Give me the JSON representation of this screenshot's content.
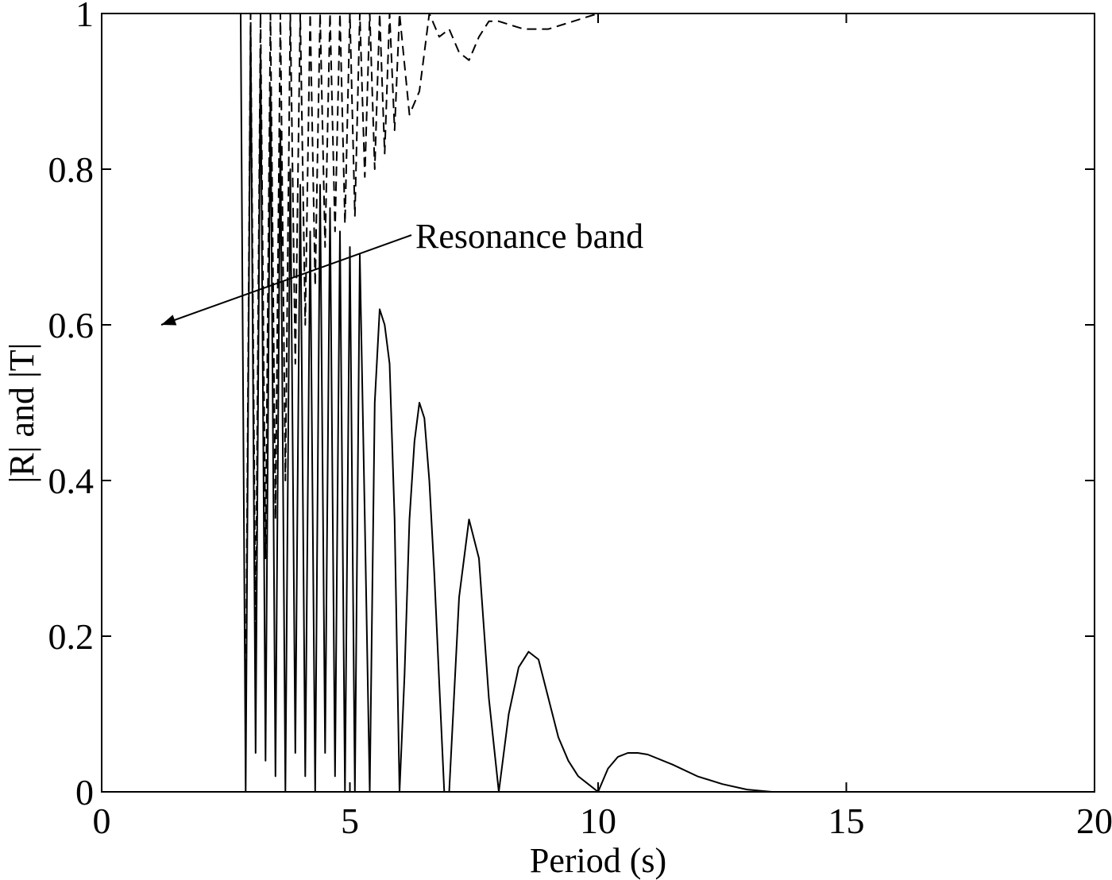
{
  "chart_data": {
    "type": "line",
    "title": "",
    "xlabel": "Period (s)",
    "ylabel": "|R| and |T|",
    "xlim": [
      0,
      20
    ],
    "ylim": [
      0,
      1
    ],
    "x_ticks": [
      "0",
      "5",
      "10",
      "15",
      "20"
    ],
    "y_ticks": [
      "0",
      "0.2",
      "0.4",
      "0.6",
      "0.8",
      "1"
    ],
    "grid": false,
    "legend": "none",
    "annotation": {
      "text": "Resonance band",
      "arrow_tip": [
        1.2,
        0.6
      ]
    },
    "series": [
      {
        "line_style": "solid",
        "color": "#000000",
        "x": [
          2.8,
          2.9,
          3.0,
          3.1,
          3.2,
          3.3,
          3.4,
          3.5,
          3.6,
          3.7,
          3.8,
          3.9,
          4.0,
          4.1,
          4.2,
          4.3,
          4.4,
          4.5,
          4.6,
          4.7,
          4.8,
          4.9,
          5.0,
          5.1,
          5.2,
          5.3,
          5.4,
          5.5,
          5.6,
          5.7,
          5.8,
          5.9,
          6.0,
          6.1,
          6.2,
          6.3,
          6.4,
          6.5,
          6.6,
          6.7,
          6.8,
          6.9,
          7.0,
          7.2,
          7.4,
          7.6,
          7.8,
          8.0,
          8.2,
          8.4,
          8.6,
          8.8,
          9.0,
          9.2,
          9.4,
          9.6,
          9.8,
          10.0,
          10.2,
          10.4,
          10.6,
          10.8,
          11.0,
          11.5,
          12.0,
          12.5,
          13.0,
          13.5,
          14.0,
          15.0,
          16.0,
          17.0,
          18.0
        ],
        "y": [
          1.0,
          0.0,
          0.98,
          0.05,
          0.95,
          0.04,
          0.9,
          0.02,
          0.85,
          0.0,
          0.8,
          0.05,
          0.78,
          0.02,
          0.72,
          0.0,
          0.78,
          0.05,
          0.75,
          0.02,
          0.72,
          0.0,
          0.7,
          0.0,
          0.69,
          0.35,
          0.0,
          0.5,
          0.62,
          0.6,
          0.55,
          0.35,
          0.0,
          0.15,
          0.35,
          0.45,
          0.5,
          0.48,
          0.4,
          0.28,
          0.14,
          0.0,
          0.0,
          0.25,
          0.35,
          0.3,
          0.12,
          0.0,
          0.1,
          0.16,
          0.18,
          0.17,
          0.12,
          0.07,
          0.04,
          0.02,
          0.01,
          0.0,
          0.03,
          0.045,
          0.05,
          0.05,
          0.048,
          0.035,
          0.02,
          0.01,
          0.003,
          0.0,
          0.0,
          0.0,
          0.0,
          0.0,
          0.0
        ]
      },
      {
        "line_style": "dashed",
        "color": "#000000",
        "x": [
          2.9,
          3.0,
          3.1,
          3.2,
          3.3,
          3.4,
          3.5,
          3.6,
          3.7,
          3.8,
          3.9,
          4.0,
          4.1,
          4.2,
          4.3,
          4.4,
          4.5,
          4.6,
          4.7,
          4.8,
          4.9,
          5.0,
          5.1,
          5.2,
          5.3,
          5.4,
          5.5,
          5.6,
          5.7,
          5.8,
          5.9,
          6.0,
          6.2,
          6.4,
          6.5,
          6.6,
          6.8,
          7.0,
          7.2,
          7.4,
          7.6,
          7.8,
          8.0,
          8.5,
          9.0,
          9.5,
          10.0,
          10.5,
          11.0,
          12.0
        ],
        "y": [
          0.1,
          1.0,
          0.2,
          1.0,
          0.3,
          1.0,
          0.35,
          1.0,
          0.4,
          1.0,
          0.55,
          1.0,
          0.6,
          1.0,
          0.65,
          1.0,
          0.7,
          1.0,
          0.72,
          1.0,
          0.73,
          1.0,
          0.74,
          1.0,
          0.79,
          1.0,
          0.8,
          1.0,
          0.82,
          1.0,
          0.85,
          1.0,
          0.87,
          0.9,
          0.95,
          1.0,
          0.97,
          0.98,
          0.95,
          0.94,
          0.97,
          0.99,
          0.99,
          0.98,
          0.98,
          0.99,
          1.0,
          1.0,
          1.0,
          1.0
        ]
      }
    ]
  }
}
